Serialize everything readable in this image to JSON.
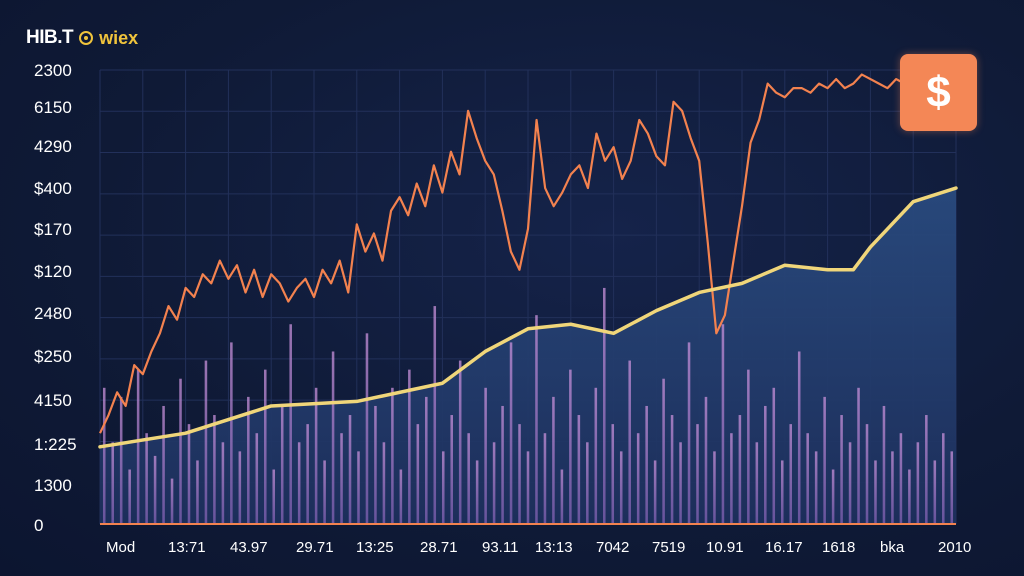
{
  "brand": {
    "name": "HIB.T",
    "logo_text": "wiex",
    "icon": "coin-icon"
  },
  "badge": {
    "symbol": "$",
    "icon": "dollar-icon",
    "color": "#f48756"
  },
  "chart_data": {
    "type": "line",
    "title": "",
    "xlabel": "",
    "ylabel": "",
    "grid": true,
    "y_tick_labels": [
      "2300",
      "6150",
      "4290",
      "$400",
      "$170",
      "$120",
      "2480",
      "$250",
      "4150",
      "1:225",
      "1300",
      "0"
    ],
    "x_tick_labels": [
      "Mod",
      "13:71",
      "43.97",
      "29.71",
      "13:25",
      "28.71",
      "93.11",
      "13:13",
      "7042",
      "7519",
      "10.91",
      "16.17",
      "1618",
      "bka",
      "2010"
    ],
    "ylim": [
      0,
      100
    ],
    "colors": {
      "price": "#f3824f",
      "trend": "#f0d67a",
      "area": "#1f3b6a",
      "volume": "#a77fc0",
      "baseline": "#f3824f"
    },
    "series": [
      {
        "kind": "price",
        "x": [
          0,
          1,
          2,
          3,
          4,
          5,
          6,
          7,
          8,
          9,
          10,
          11,
          12,
          13,
          14,
          15,
          16,
          17,
          18,
          19,
          20,
          21,
          22,
          23,
          24,
          25,
          26,
          27,
          28,
          29,
          30,
          31,
          32,
          33,
          34,
          35,
          36,
          37,
          38,
          39,
          40,
          41,
          42,
          43,
          44,
          45,
          46,
          47,
          48,
          49,
          50,
          51,
          52,
          53,
          54,
          55,
          56,
          57,
          58,
          59,
          60,
          61,
          62,
          63,
          64,
          65,
          66,
          67,
          68,
          69,
          70,
          71,
          72,
          73,
          74,
          75,
          76,
          77,
          78,
          79,
          80,
          81,
          82,
          83,
          84,
          85,
          86,
          87,
          88,
          89,
          90,
          91,
          92,
          93,
          94,
          95,
          96,
          97,
          98,
          99,
          100
        ],
        "values": [
          20,
          24,
          29,
          26,
          35,
          33,
          38,
          42,
          48,
          45,
          52,
          50,
          55,
          53,
          58,
          54,
          57,
          51,
          56,
          50,
          55,
          53,
          49,
          52,
          54,
          50,
          56,
          53,
          58,
          51,
          66,
          60,
          64,
          58,
          69,
          72,
          68,
          75,
          70,
          79,
          73,
          82,
          77,
          91,
          85,
          80,
          77,
          69,
          60,
          56,
          65,
          89,
          74,
          70,
          73,
          77,
          79,
          74,
          86,
          80,
          83,
          76,
          80,
          89,
          86,
          81,
          79,
          93,
          91,
          85,
          80,
          62,
          42,
          46,
          58,
          70,
          84,
          89,
          97,
          95,
          94,
          96,
          96,
          95,
          97,
          96,
          98,
          96,
          97,
          99,
          98,
          97,
          96,
          98,
          97,
          96,
          97,
          98,
          97,
          96,
          97
        ]
      },
      {
        "kind": "trend",
        "x": [
          0,
          10,
          20,
          30,
          40,
          45,
          50,
          55,
          60,
          65,
          70,
          75,
          80,
          85,
          88,
          90,
          95,
          100
        ],
        "values": [
          17,
          20,
          26,
          27,
          31,
          38,
          43,
          44,
          42,
          47,
          51,
          53,
          57,
          56,
          56,
          61,
          71,
          74
        ]
      }
    ],
    "volume": [
      30,
      18,
      28,
      12,
      34,
      20,
      15,
      26,
      10,
      32,
      22,
      14,
      36,
      24,
      18,
      40,
      16,
      28,
      20,
      34,
      12,
      26,
      44,
      18,
      22,
      30,
      14,
      38,
      20,
      24,
      16,
      42,
      26,
      18,
      30,
      12,
      34,
      22,
      28,
      48,
      16,
      24,
      36,
      20,
      14,
      30,
      18,
      26,
      40,
      22,
      16,
      46,
      20,
      28,
      12,
      34,
      24,
      18,
      30,
      52,
      22,
      16,
      36,
      20,
      26,
      14,
      32,
      24,
      18,
      40,
      22,
      28,
      16,
      44,
      20,
      24,
      34,
      18,
      26,
      30,
      14,
      22,
      38,
      20,
      16,
      28,
      12,
      24,
      18,
      30,
      22,
      14,
      26,
      16,
      20,
      12,
      18,
      24,
      14,
      20,
      16
    ]
  }
}
